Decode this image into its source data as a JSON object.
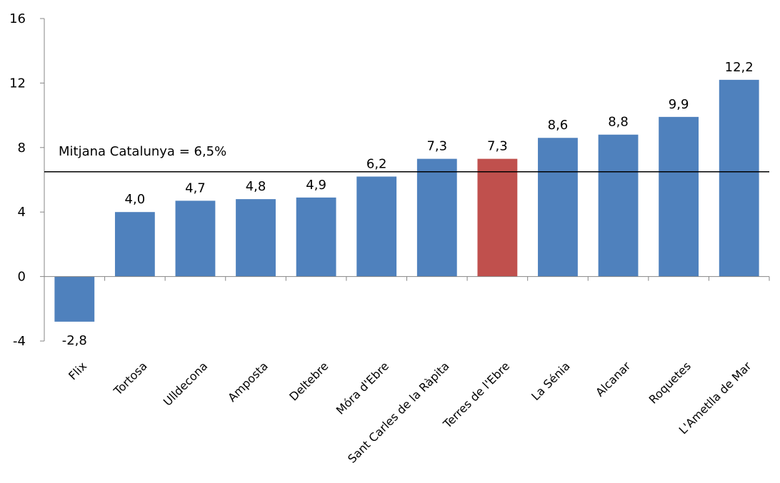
{
  "chart_data": {
    "type": "bar",
    "title": "",
    "xlabel": "",
    "ylabel": "",
    "ylim": [
      -4,
      16
    ],
    "yticks": [
      -4,
      0,
      4,
      8,
      12,
      16
    ],
    "ytick_labels": [
      "-4",
      "0",
      "4",
      "8",
      "12",
      "16"
    ],
    "grid": false,
    "legend": "none",
    "categories": [
      "Flix",
      "Tortosa",
      "Ulldecona",
      "Amposta",
      "Deltebre",
      "Móra d'Ebre",
      "Sant Carles de la Ràpita",
      "Terres de l'Ebre",
      "La Sénia",
      "Alcanar",
      "Roquetes",
      "L'Ametlla de Mar"
    ],
    "values": [
      -2.8,
      4.0,
      4.7,
      4.8,
      4.9,
      6.2,
      7.3,
      7.3,
      8.6,
      8.8,
      9.9,
      12.2
    ],
    "value_labels": [
      "-2,8",
      "4,0",
      "4,7",
      "4,8",
      "4,9",
      "6,2",
      "7,3",
      "7,3",
      "8,6",
      "8,8",
      "9,9",
      "12,2"
    ],
    "highlight_index": 7,
    "colors": {
      "bar": "#4F81BD",
      "highlight": "#C0504D",
      "axis": "#868686",
      "reference_line": "#000000"
    },
    "reference_line": {
      "value": 6.5,
      "label": "Mitjana Catalunya = 6,5%"
    }
  }
}
